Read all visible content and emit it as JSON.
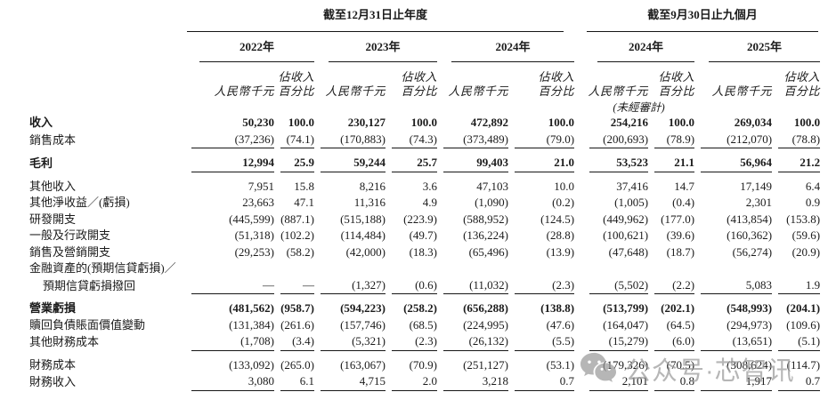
{
  "colors": {
    "text": "#1b1b1b",
    "rule": "#161616",
    "watermark": "#9a9a9a",
    "background": "#ffffff"
  },
  "table": {
    "period_groups": [
      {
        "label": "截至12月31日止年度"
      },
      {
        "label": "截至9月30日止九個月"
      }
    ],
    "year_headers": [
      "2022年",
      "2023年",
      "2024年",
      "2024年",
      "2025年"
    ],
    "col_headers": {
      "value": "人民幣千元",
      "pct_line1": "佔收入",
      "pct_line2": "百分比"
    },
    "unaudited_note": "(未經審計)",
    "rows": [
      {
        "label": "收入",
        "bold": true,
        "values": [
          "50,230",
          "100.0",
          "230,127",
          "100.0",
          "472,892",
          "100.0",
          "254,216",
          "100.0",
          "269,034",
          "100.0"
        ]
      },
      {
        "label": "銷售成本",
        "rule_below": true,
        "values": [
          "(37,236)",
          "(74.1)",
          "(170,883)",
          "(74.3)",
          "(373,489)",
          "(79.0)",
          "(200,693)",
          "(78.9)",
          "(212,070)",
          "(78.8)"
        ]
      },
      {
        "label": "毛利",
        "bold": true,
        "rule_below": true,
        "space_above": true,
        "values": [
          "12,994",
          "25.9",
          "59,244",
          "25.7",
          "99,403",
          "21.0",
          "53,523",
          "21.1",
          "56,964",
          "21.2"
        ]
      },
      {
        "label": "其他收入",
        "space_above": true,
        "values": [
          "7,951",
          "15.8",
          "8,216",
          "3.6",
          "47,103",
          "10.0",
          "37,416",
          "14.7",
          "17,149",
          "6.4"
        ]
      },
      {
        "label": "其他淨收益／(虧損)",
        "values": [
          "23,663",
          "47.1",
          "11,316",
          "4.9",
          "(1,090)",
          "(0.2)",
          "(1,005)",
          "(0.4)",
          "2,301",
          "0.9"
        ]
      },
      {
        "label": "研發開支",
        "values": [
          "(445,599)",
          "(887.1)",
          "(515,188)",
          "(223.9)",
          "(588,952)",
          "(124.5)",
          "(449,962)",
          "(177.0)",
          "(413,854)",
          "(153.8)"
        ]
      },
      {
        "label": "一般及行政開支",
        "values": [
          "(51,318)",
          "(102.2)",
          "(114,484)",
          "(49.7)",
          "(136,224)",
          "(28.8)",
          "(100,621)",
          "(39.6)",
          "(160,362)",
          "(59.6)"
        ]
      },
      {
        "label": "銷售及營銷開支",
        "values": [
          "(29,253)",
          "(58.2)",
          "(42,000)",
          "(18.3)",
          "(65,496)",
          "(13.9)",
          "(47,648)",
          "(18.7)",
          "(56,274)",
          "(20.9)"
        ]
      },
      {
        "label": "金融資產的(預期信貸虧損)／",
        "values": []
      },
      {
        "label": "預期信貸虧損撥回",
        "indent": true,
        "rule_below": true,
        "values": [
          "—",
          "—",
          "(1,327)",
          "(0.6)",
          "(11,032)",
          "(2.3)",
          "(5,502)",
          "(2.2)",
          "5,083",
          "1.9"
        ]
      },
      {
        "label": "營業虧損",
        "bold": true,
        "space_above": true,
        "values": [
          "(481,562)",
          "(958.7)",
          "(594,223)",
          "(258.2)",
          "(656,288)",
          "(138.8)",
          "(513,799)",
          "(202.1)",
          "(548,993)",
          "(204.1)"
        ]
      },
      {
        "label": "贖回負債賬面價值變動",
        "values": [
          "(131,384)",
          "(261.6)",
          "(157,746)",
          "(68.5)",
          "(224,995)",
          "(47.6)",
          "(164,047)",
          "(64.5)",
          "(294,973)",
          "(109.6)"
        ]
      },
      {
        "label": "其他財務成本",
        "rule_below": true,
        "values": [
          "(1,708)",
          "(3.4)",
          "(5,321)",
          "(2.3)",
          "(26,132)",
          "(5.5)",
          "(15,279)",
          "(6.0)",
          "(13,651)",
          "(5.1)"
        ]
      },
      {
        "label": "財務成本",
        "space_above": true,
        "values": [
          "(133,092)",
          "(265.0)",
          "(163,067)",
          "(70.9)",
          "(251,127)",
          "(53.1)",
          "(179,326)",
          "(70.5)",
          "(308,624)",
          "(114.7)"
        ]
      },
      {
        "label": "財務收入",
        "rule_below": true,
        "values": [
          "3,080",
          "6.1",
          "4,715",
          "2.0",
          "3,218",
          "0.7",
          "2,101",
          "0.8",
          "1,917",
          "0.7"
        ]
      }
    ]
  },
  "watermark": {
    "text": "公众号·芯智讯",
    "icon": "wechat-icon"
  }
}
